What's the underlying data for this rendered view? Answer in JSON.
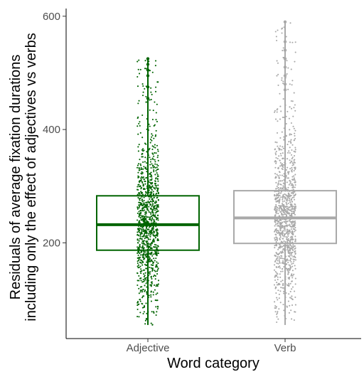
{
  "chart_data": {
    "type": "box",
    "xlabel": "Word category",
    "ylabel_lines": [
      "Residuals of average fixation durations",
      "including only the effect of adjectives vs verbs"
    ],
    "ylim": [
      0,
      600
    ],
    "yticks": [
      200,
      400,
      600
    ],
    "grid": false,
    "categories": [
      "Adjective",
      "Verb"
    ],
    "boxes": [
      {
        "category": "Adjective",
        "color": "#006400",
        "whisker_low": 55,
        "q1": 187,
        "median": 232,
        "q3": 283,
        "whisker_high": 525,
        "jitter_range": [
          55,
          525
        ],
        "outliers": [
          455,
          475,
          495,
          505,
          515,
          525
        ]
      },
      {
        "category": "Verb",
        "color": "#a9a9a9",
        "whisker_low": 55,
        "q1": 199,
        "median": 244,
        "q3": 292,
        "whisker_high": 590,
        "jitter_range": [
          55,
          590
        ],
        "outliers": [
          470,
          480,
          495,
          510,
          525,
          540,
          555,
          590
        ]
      }
    ]
  }
}
